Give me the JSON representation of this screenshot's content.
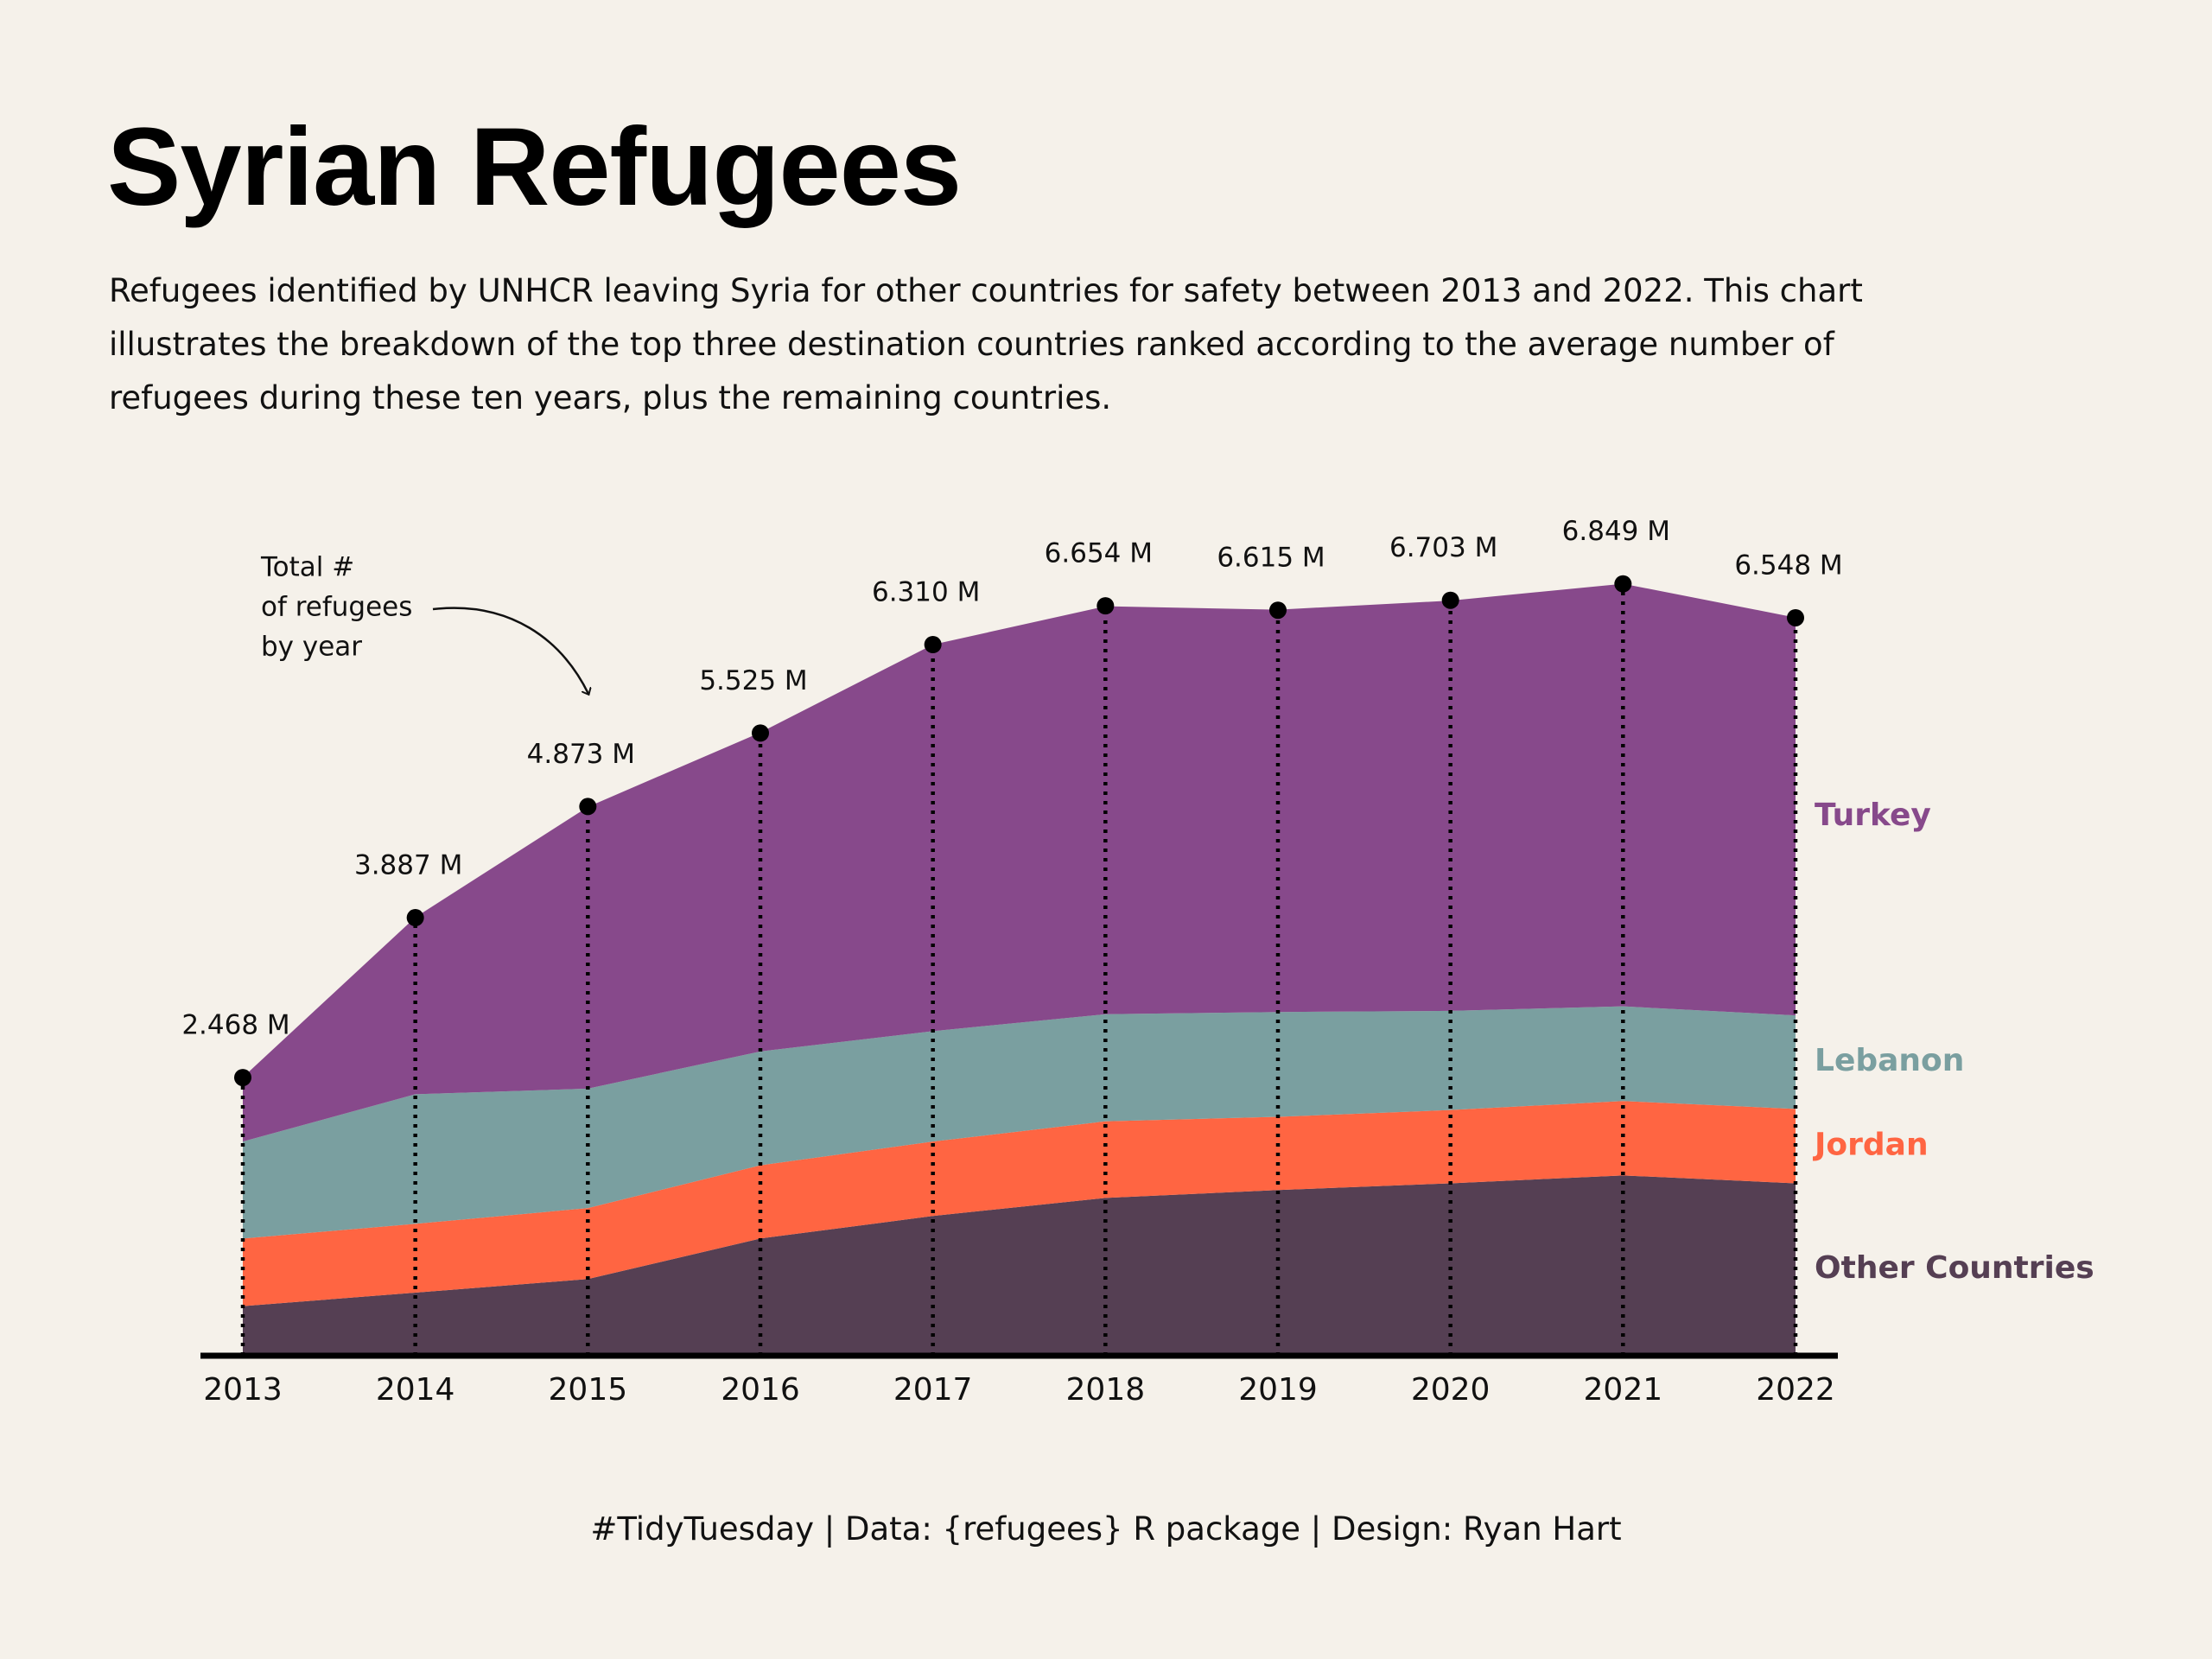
{
  "chart_data": {
    "type": "area",
    "title": "Syrian Refugees",
    "subtitle": "Refugees identified by UNHCR leaving Syria for other countries for safety between 2013 and 2022. This chart illustrates the breakdown of the top three destination countries ranked according to the average number of refugees during these ten years, plus the remaining countries.",
    "caption": "#TidyTuesday | Data: {refugees} R package | Design: Ryan Hart",
    "annotation": [
      "Total #",
      "of refugees",
      "by year"
    ],
    "categories": [
      "2013",
      "2014",
      "2015",
      "2016",
      "2017",
      "2018",
      "2019",
      "2020",
      "2021",
      "2022"
    ],
    "ylim": [
      0,
      7
    ],
    "stacked": true,
    "series": [
      {
        "name": "Other Countries",
        "color": "#553f53",
        "values": [
          0.44,
          0.56,
          0.68,
          1.04,
          1.24,
          1.4,
          1.47,
          1.53,
          1.6,
          1.53
        ]
      },
      {
        "name": "Jordan",
        "color": "#ff6542",
        "values": [
          0.6,
          0.61,
          0.63,
          0.65,
          0.66,
          0.68,
          0.65,
          0.65,
          0.66,
          0.66
        ]
      },
      {
        "name": "Lebanon",
        "color": "#7a9fa0",
        "values": [
          0.86,
          1.15,
          1.06,
          1.01,
          0.98,
          0.95,
          0.93,
          0.88,
          0.84,
          0.83
        ]
      },
      {
        "name": "Turkey",
        "color": "#87498b",
        "values": [
          0.57,
          1.57,
          2.5,
          2.83,
          3.43,
          3.62,
          3.57,
          3.64,
          3.75,
          3.53
        ]
      }
    ],
    "totals": {
      "values": [
        2.468,
        3.887,
        4.873,
        5.525,
        6.31,
        6.654,
        6.615,
        6.703,
        6.849,
        6.548
      ],
      "value_labels": [
        "2.468 M",
        "3.887 M",
        "4.873 M",
        "5.525 M",
        "6.310 M",
        "6.654 M",
        "6.615 M",
        "6.703 M",
        "6.849 M",
        "6.548 M"
      ]
    }
  }
}
